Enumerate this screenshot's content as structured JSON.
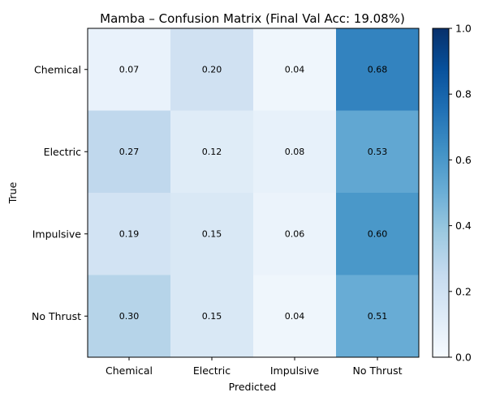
{
  "chart_data": {
    "type": "heatmap",
    "title": "Mamba – Confusion Matrix (Final Val Acc: 19.08%)",
    "xlabel": "Predicted",
    "ylabel": "True",
    "x_categories": [
      "Chemical",
      "Electric",
      "Impulsive",
      "No Thrust"
    ],
    "y_categories": [
      "Chemical",
      "Electric",
      "Impulsive",
      "No Thrust"
    ],
    "values": [
      [
        0.07,
        0.2,
        0.04,
        0.68
      ],
      [
        0.27,
        0.12,
        0.08,
        0.53
      ],
      [
        0.19,
        0.15,
        0.06,
        0.6
      ],
      [
        0.3,
        0.15,
        0.04,
        0.51
      ]
    ],
    "value_labels": [
      [
        "0.07",
        "0.20",
        "0.04",
        "0.68"
      ],
      [
        "0.27",
        "0.12",
        "0.08",
        "0.53"
      ],
      [
        "0.19",
        "0.15",
        "0.06",
        "0.60"
      ],
      [
        "0.30",
        "0.15",
        "0.04",
        "0.51"
      ]
    ],
    "colorbar": {
      "range": [
        0.0,
        1.0
      ],
      "ticks": [
        "0.0",
        "0.2",
        "0.4",
        "0.6",
        "0.8",
        "1.0"
      ],
      "colormap": [
        "#f7fbff",
        "#deebf7",
        "#c6dbef",
        "#9ecae1",
        "#6baed6",
        "#4292c6",
        "#2171b5",
        "#08519c",
        "#08306b"
      ]
    }
  }
}
